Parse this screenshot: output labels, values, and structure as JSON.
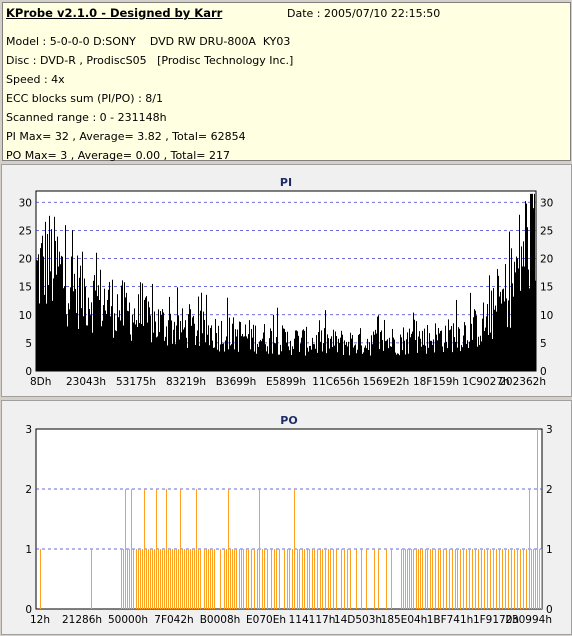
{
  "info": {
    "title": "KProbe v2.1.0 - Designed by Karr",
    "date": "Date : 2005/07/10 22:15:50",
    "model": "Model : 5-0-0-0 D:SONY    DVD RW DRU-800A  KY03",
    "disc": "Disc : DVD-R , ProdiscS05   [Prodisc Technology Inc.]",
    "speed": "Speed : 4x",
    "ecc": "ECC blocks sum (PI/PO) : 8/1",
    "range": "Scanned range : 0 - 231148h",
    "pi": "PI Max= 32 , Average= 3.82 , Total= 62854",
    "po": "PO Max= 3 , Average= 0.00 , Total= 217"
  },
  "colors": {
    "pi_bars": "#000000",
    "po_bars": "#ffa020",
    "grid": "#3a3acd",
    "plot_bg": "#ffffff",
    "title": "#1f2d6b"
  },
  "chart_data": [
    {
      "type": "bar",
      "title": "PI",
      "ylim": [
        0,
        32
      ],
      "y_ticks": [
        "0",
        "5",
        "10",
        "15",
        "20",
        "25",
        "30"
      ],
      "x_tick_labels": [
        "8Dh",
        "23043h",
        "53175h",
        "83219h",
        "B3699h",
        "E5899h",
        "11C656h",
        "1569E2h",
        "18F159h",
        "1C9027h",
        "202362h"
      ],
      "grid": true,
      "profile_y": [
        19,
        22,
        20,
        17,
        16,
        15,
        14,
        13,
        12,
        11,
        10,
        9.5,
        9,
        8.5,
        8.3,
        8,
        7.8,
        7.5,
        7.3,
        7,
        6.8,
        6.5,
        6.3,
        6,
        6,
        5.8,
        5.8,
        5.6,
        5.6,
        5.6,
        5.8,
        5.8,
        6,
        6,
        6.2,
        6.3,
        6.5,
        6.8,
        7,
        7.5,
        8,
        9,
        11,
        14,
        18,
        25,
        29
      ],
      "max": 32,
      "average": 3.82,
      "total": 62854
    },
    {
      "type": "bar",
      "title": "PO",
      "ylim": [
        0,
        3
      ],
      "y_ticks": [
        "0",
        "1",
        "2",
        "3"
      ],
      "x_tick_labels": [
        "12h",
        "21286h",
        "50000h",
        "7F042h",
        "B0008h",
        "E070Eh",
        "114117h",
        "14D503h",
        "185E04h",
        "1BF741h",
        "1F9170h",
        "230994h"
      ],
      "grid": true,
      "x_extent": 506,
      "bars": [
        [
          4,
          1
        ],
        [
          55,
          1
        ],
        [
          85,
          1
        ],
        [
          87,
          1
        ],
        [
          89,
          2
        ],
        [
          91,
          1
        ],
        [
          93,
          1
        ],
        [
          95,
          2
        ],
        [
          97,
          1
        ],
        [
          100,
          1
        ],
        [
          102,
          1
        ],
        [
          104,
          1
        ],
        [
          106,
          1
        ],
        [
          108,
          2
        ],
        [
          110,
          1
        ],
        [
          112,
          1
        ],
        [
          114,
          1
        ],
        [
          116,
          1
        ],
        [
          118,
          1
        ],
        [
          120,
          2
        ],
        [
          122,
          1
        ],
        [
          124,
          1
        ],
        [
          126,
          1
        ],
        [
          128,
          1
        ],
        [
          130,
          2
        ],
        [
          132,
          1
        ],
        [
          134,
          1
        ],
        [
          136,
          1
        ],
        [
          138,
          1
        ],
        [
          140,
          1
        ],
        [
          142,
          1
        ],
        [
          144,
          2
        ],
        [
          146,
          1
        ],
        [
          148,
          1
        ],
        [
          150,
          1
        ],
        [
          152,
          1
        ],
        [
          154,
          1
        ],
        [
          156,
          1
        ],
        [
          158,
          1
        ],
        [
          160,
          2
        ],
        [
          162,
          1
        ],
        [
          164,
          1
        ],
        [
          168,
          1
        ],
        [
          170,
          1
        ],
        [
          172,
          1
        ],
        [
          174,
          1
        ],
        [
          176,
          1
        ],
        [
          178,
          1
        ],
        [
          184,
          1
        ],
        [
          188,
          1
        ],
        [
          190,
          1
        ],
        [
          192,
          2
        ],
        [
          194,
          1
        ],
        [
          196,
          1
        ],
        [
          198,
          1
        ],
        [
          200,
          1
        ],
        [
          203,
          1
        ],
        [
          205,
          1
        ],
        [
          207,
          1
        ],
        [
          210,
          1
        ],
        [
          212,
          1
        ],
        [
          215,
          1
        ],
        [
          218,
          1
        ],
        [
          221,
          1
        ],
        [
          223,
          2
        ],
        [
          226,
          1
        ],
        [
          228,
          1
        ],
        [
          231,
          1
        ],
        [
          235,
          1
        ],
        [
          238,
          1
        ],
        [
          240,
          1
        ],
        [
          243,
          1
        ],
        [
          248,
          1
        ],
        [
          251,
          1
        ],
        [
          253,
          1
        ],
        [
          256,
          1
        ],
        [
          258,
          2
        ],
        [
          261,
          1
        ],
        [
          263,
          1
        ],
        [
          266,
          1
        ],
        [
          268,
          1
        ],
        [
          271,
          1
        ],
        [
          273,
          1
        ],
        [
          276,
          1
        ],
        [
          278,
          1
        ],
        [
          281,
          1
        ],
        [
          284,
          1
        ],
        [
          286,
          1
        ],
        [
          289,
          1
        ],
        [
          292,
          1
        ],
        [
          294,
          1
        ],
        [
          297,
          1
        ],
        [
          300,
          1
        ],
        [
          305,
          1
        ],
        [
          308,
          1
        ],
        [
          311,
          1
        ],
        [
          314,
          1
        ],
        [
          320,
          1
        ],
        [
          325,
          1
        ],
        [
          330,
          1
        ],
        [
          338,
          1
        ],
        [
          342,
          1
        ],
        [
          350,
          1
        ],
        [
          355,
          1
        ],
        [
          365,
          1
        ],
        [
          367,
          1
        ],
        [
          369,
          1
        ],
        [
          371,
          1
        ],
        [
          373,
          1
        ],
        [
          375,
          1
        ],
        [
          377,
          1
        ],
        [
          380,
          1
        ],
        [
          382,
          1
        ],
        [
          384,
          1
        ],
        [
          386,
          1
        ],
        [
          389,
          1
        ],
        [
          391,
          1
        ],
        [
          394,
          1
        ],
        [
          396,
          1
        ],
        [
          399,
          1
        ],
        [
          402,
          1
        ],
        [
          404,
          1
        ],
        [
          407,
          1
        ],
        [
          410,
          1
        ],
        [
          413,
          1
        ],
        [
          416,
          1
        ],
        [
          419,
          1
        ],
        [
          421,
          1
        ],
        [
          424,
          1
        ],
        [
          427,
          1
        ],
        [
          430,
          1
        ],
        [
          433,
          1
        ],
        [
          436,
          1
        ],
        [
          439,
          1
        ],
        [
          442,
          1
        ],
        [
          445,
          1
        ],
        [
          448,
          1
        ],
        [
          451,
          1
        ],
        [
          454,
          1
        ],
        [
          457,
          1
        ],
        [
          460,
          1
        ],
        [
          463,
          1
        ],
        [
          466,
          1
        ],
        [
          469,
          1
        ],
        [
          472,
          1
        ],
        [
          475,
          1
        ],
        [
          478,
          1
        ],
        [
          481,
          1
        ],
        [
          484,
          1
        ],
        [
          487,
          1
        ],
        [
          490,
          1
        ],
        [
          493,
          2
        ],
        [
          495,
          1
        ],
        [
          497,
          1
        ],
        [
          499,
          1
        ],
        [
          501,
          3
        ],
        [
          503,
          1
        ],
        [
          505,
          1
        ]
      ],
      "max": 3,
      "average": 0.0,
      "total": 217
    }
  ]
}
